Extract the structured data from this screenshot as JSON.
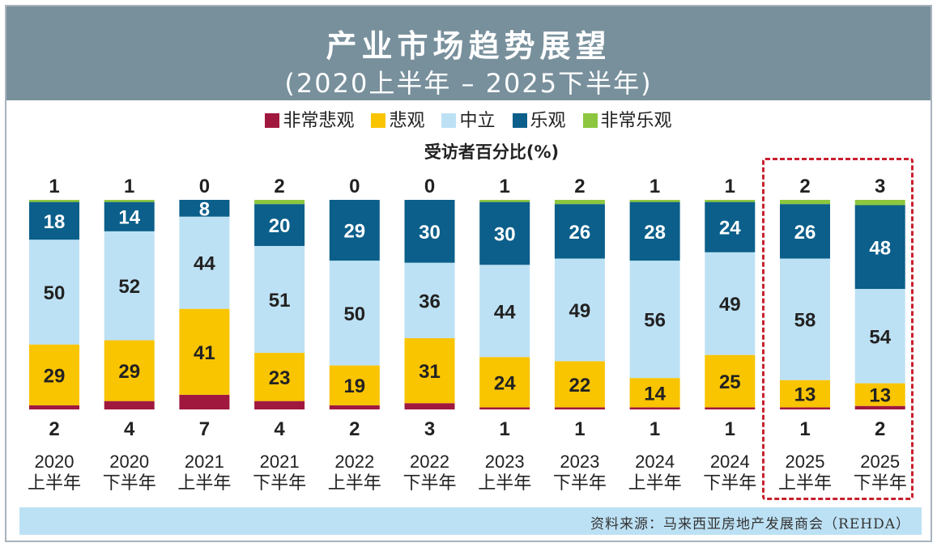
{
  "header": {
    "title": "产业市场趋势展望",
    "subtitle": "(2020上半年 – 2025下半年)"
  },
  "legend": [
    {
      "label": "非常悲观",
      "color": "#a0183e"
    },
    {
      "label": "悲观",
      "color": "#f9c400"
    },
    {
      "label": "中立",
      "color": "#bde1f4"
    },
    {
      "label": "乐观",
      "color": "#0b5f8a"
    },
    {
      "label": "非常乐观",
      "color": "#8dc63f"
    }
  ],
  "footer": {
    "source": "资料来源：马来西亚房地产发展商会（REHDA）"
  },
  "chart_data": {
    "type": "bar",
    "stacked": true,
    "percent": true,
    "title": "产业市场趋势展望",
    "subtitle": "(2020上半年 – 2025下半年)",
    "ylabel": "受访者百分比(%)",
    "categories": [
      [
        "2020",
        "上半年"
      ],
      [
        "2020",
        "下半年"
      ],
      [
        "2021",
        "上半年"
      ],
      [
        "2021",
        "下半年"
      ],
      [
        "2022",
        "上半年"
      ],
      [
        "2022",
        "下半年"
      ],
      [
        "2023",
        "上半年"
      ],
      [
        "2023",
        "下半年"
      ],
      [
        "2024",
        "上半年"
      ],
      [
        "2024",
        "下半年"
      ],
      [
        "2025",
        "上半年"
      ],
      [
        "2025",
        "下半年"
      ]
    ],
    "series": [
      {
        "name": "非常悲观",
        "color": "#a0183e",
        "values": [
          2,
          4,
          7,
          4,
          2,
          3,
          1,
          1,
          1,
          1,
          1,
          2
        ]
      },
      {
        "name": "悲观",
        "color": "#f9c400",
        "values": [
          29,
          29,
          41,
          23,
          19,
          31,
          24,
          22,
          14,
          25,
          13,
          13
        ]
      },
      {
        "name": "中立",
        "color": "#bde1f4",
        "values": [
          50,
          52,
          44,
          51,
          50,
          36,
          44,
          49,
          56,
          49,
          58,
          54
        ]
      },
      {
        "name": "乐观",
        "color": "#0b5f8a",
        "values": [
          18,
          14,
          8,
          20,
          29,
          30,
          30,
          26,
          28,
          24,
          26,
          48
        ]
      },
      {
        "name": "非常乐观",
        "color": "#8dc63f",
        "values": [
          1,
          1,
          0,
          2,
          0,
          0,
          1,
          2,
          1,
          1,
          2,
          3
        ]
      }
    ],
    "highlighted_categories": [
      [
        "2025",
        "上半年"
      ],
      [
        "2025",
        "下半年"
      ]
    ],
    "legend_position": "top",
    "grid": false
  }
}
